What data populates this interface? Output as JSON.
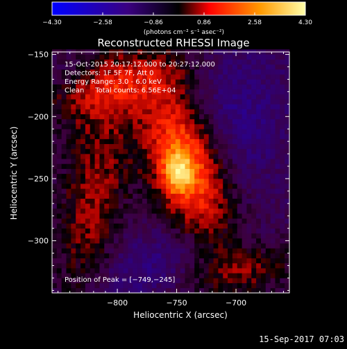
{
  "chart_data": {
    "type": "heatmap",
    "title": "Reconstructed RHESSI Image",
    "xlabel": "Heliocentric X (arcsec)",
    "ylabel": "Heliocentric Y (arcsec)",
    "xlim": [
      -855,
      -655
    ],
    "ylim": [
      -342,
      -148
    ],
    "xticks": [
      -800,
      -750,
      -700
    ],
    "xtick_labels": [
      "−800",
      "−750",
      "−700"
    ],
    "yticks": [
      -150,
      -200,
      -250,
      -300
    ],
    "ytick_labels": [
      "−150",
      "−200",
      "−250",
      "−300"
    ],
    "colorbar": {
      "min": -4.3,
      "max": 4.3,
      "ticks": [
        -4.3,
        -2.58,
        -0.86,
        0.86,
        2.58,
        4.3
      ],
      "tick_labels": [
        "−4.30",
        "−2.58",
        "−0.86",
        "0.86",
        "2.58",
        "4.30"
      ],
      "unit_label": "(photons cm⁻² s⁻¹ asec⁻²)"
    },
    "annotations": [
      "15-Oct-2015 20:17:12.000 to 20:27:12.000",
      "Detectors: 1F 5F 7F, Att 0",
      "Energy Range: 3.0 - 6.0 keV",
      "Clean     Total counts: 6.56E+04"
    ],
    "peak_label": "Position of Peak = [−749,−245]",
    "peak": {
      "x": -749,
      "y": -245,
      "value": 4.3
    },
    "grid": false,
    "colormap": [
      "#0000ff",
      "#3a0080",
      "#000000",
      "#ff0000",
      "#ff9900",
      "#ffffaa"
    ]
  },
  "footer": {
    "timestamp": "15-Sep-2017 07:03"
  }
}
